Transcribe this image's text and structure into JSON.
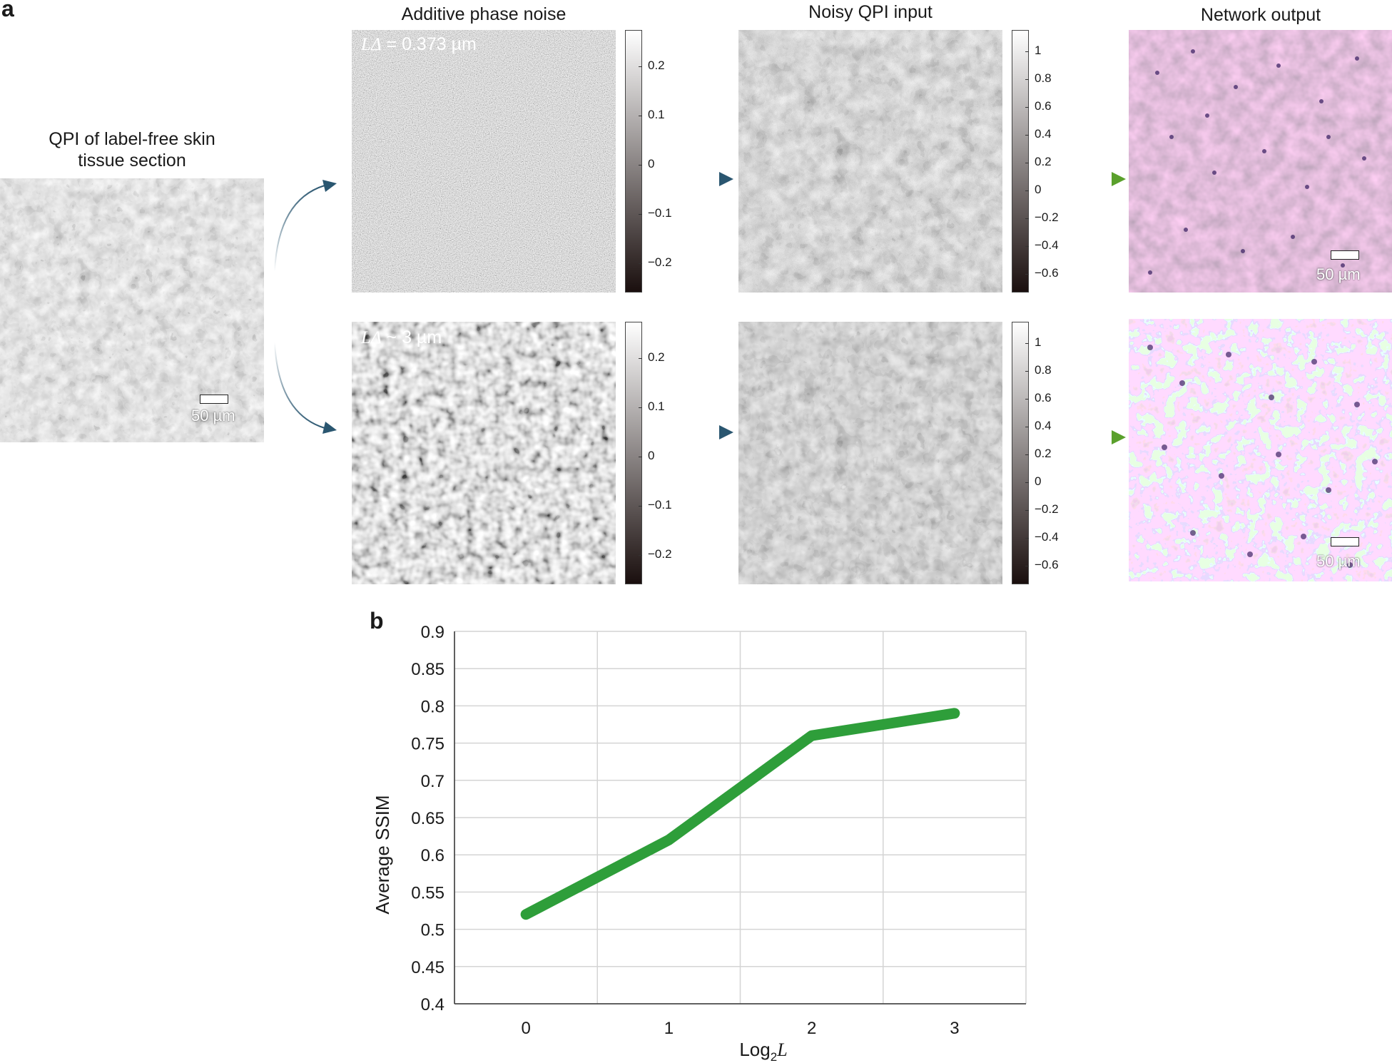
{
  "panel_a": {
    "label": "a",
    "source_title_line1": "QPI of label-free skin",
    "source_title_line2": "tissue section",
    "col_noise_title": "Additive phase noise",
    "col_input_title": "Noisy QPI input",
    "col_output_title": "Network output",
    "scale_bar_text": "50 µm",
    "row1_caption_symbol": "LΔ",
    "row1_caption_value": " = 0.373 µm",
    "row2_caption_symbol": "LΔ",
    "row2_caption_value": " ~ 3 µm",
    "noise_colorbar_ticks": [
      "0.2",
      "0.1",
      "0",
      "−0.1",
      "−0.2"
    ],
    "input_colorbar_ticks": [
      "1",
      "0.8",
      "0.6",
      "0.4",
      "0.2",
      "0",
      "−0.2",
      "−0.4",
      "−0.6"
    ],
    "arrow_color_blue": "#2a5670",
    "arrow_color_green": "#5aa02c"
  },
  "panel_b": {
    "label": "b"
  },
  "chart_data": {
    "type": "line",
    "x": [
      0,
      1,
      2,
      3
    ],
    "series": [
      {
        "values": [
          0.52,
          0.62,
          0.76,
          0.79
        ],
        "color": "#2e9e3a"
      }
    ],
    "xlabel_main": "Log",
    "xlabel_sub": "2",
    "xlabel_italic": "L",
    "ylabel": "Average SSIM",
    "xticks": [
      "0",
      "1",
      "2",
      "3"
    ],
    "yticks": [
      "0.4",
      "0.45",
      "0.5",
      "0.55",
      "0.6",
      "0.65",
      "0.7",
      "0.75",
      "0.8",
      "0.85",
      "0.9"
    ],
    "ylim": [
      0.4,
      0.9
    ],
    "xlim": [
      -0.5,
      3.5
    ],
    "grid": true
  }
}
